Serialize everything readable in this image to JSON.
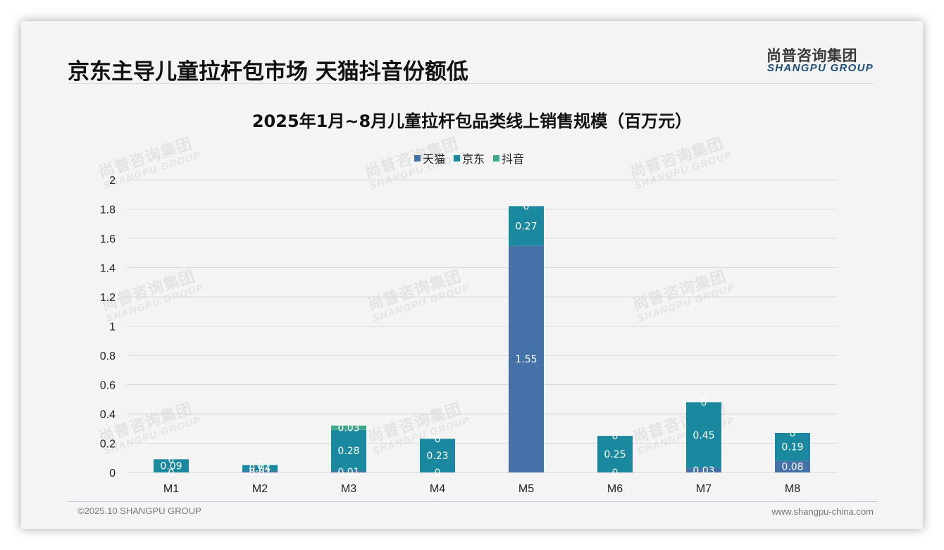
{
  "header": {
    "title": "京东主导儿童拉杆包市场 天猫抖音份额低",
    "logo_cn": "尚普咨询集团",
    "logo_en": "SHANGPU GROUP"
  },
  "footer": {
    "copyright": "©2025.10 SHANGPU GROUP",
    "website": "www.shangpu-china.com"
  },
  "watermark": {
    "cn": "尚普咨询集团",
    "en": "SHANGPU GROUP"
  },
  "colors": {
    "tmall": "#4472a8",
    "jd": "#1a889e",
    "douyin": "#3ea78a",
    "grid": "#d9d9d9",
    "label": "#ffffff"
  },
  "chart_data": {
    "type": "bar",
    "stacked": true,
    "title": "2025年1月~8月儿童拉杆包品类线上销售规模（百万元）",
    "xlabel": "",
    "ylabel": "",
    "categories": [
      "M1",
      "M2",
      "M3",
      "M4",
      "M5",
      "M6",
      "M7",
      "M8"
    ],
    "series": [
      {
        "name": "天猫",
        "color_key": "tmall",
        "values": [
          0,
          0.01,
          0.01,
          0,
          1.55,
          0,
          0.03,
          0.08
        ],
        "labels": [
          "0",
          "0.01",
          "0.01",
          "0",
          "1.55",
          "0",
          "0.03",
          "0.08"
        ]
      },
      {
        "name": "京东",
        "color_key": "jd",
        "values": [
          0.09,
          0.04,
          0.28,
          0.23,
          0.27,
          0.25,
          0.45,
          0.19
        ],
        "labels": [
          "0.09",
          "0.04",
          "0.28",
          "0.23",
          "0.27",
          "0.25",
          "0.45",
          "0.19"
        ]
      },
      {
        "name": "抖音",
        "color_key": "douyin",
        "values": [
          0,
          0,
          0.03,
          0,
          0,
          0,
          0,
          0
        ],
        "labels": [
          "0",
          "0",
          "0.03",
          "0",
          "0",
          "0",
          "0",
          "0"
        ]
      }
    ],
    "ylim": [
      0,
      2
    ],
    "yticks": [
      "0",
      "0.2",
      "0.4",
      "0.6",
      "0.8",
      "1",
      "1.2",
      "1.4",
      "1.6",
      "1.8",
      "2"
    ],
    "grid": true,
    "legend_position": "top-center"
  }
}
